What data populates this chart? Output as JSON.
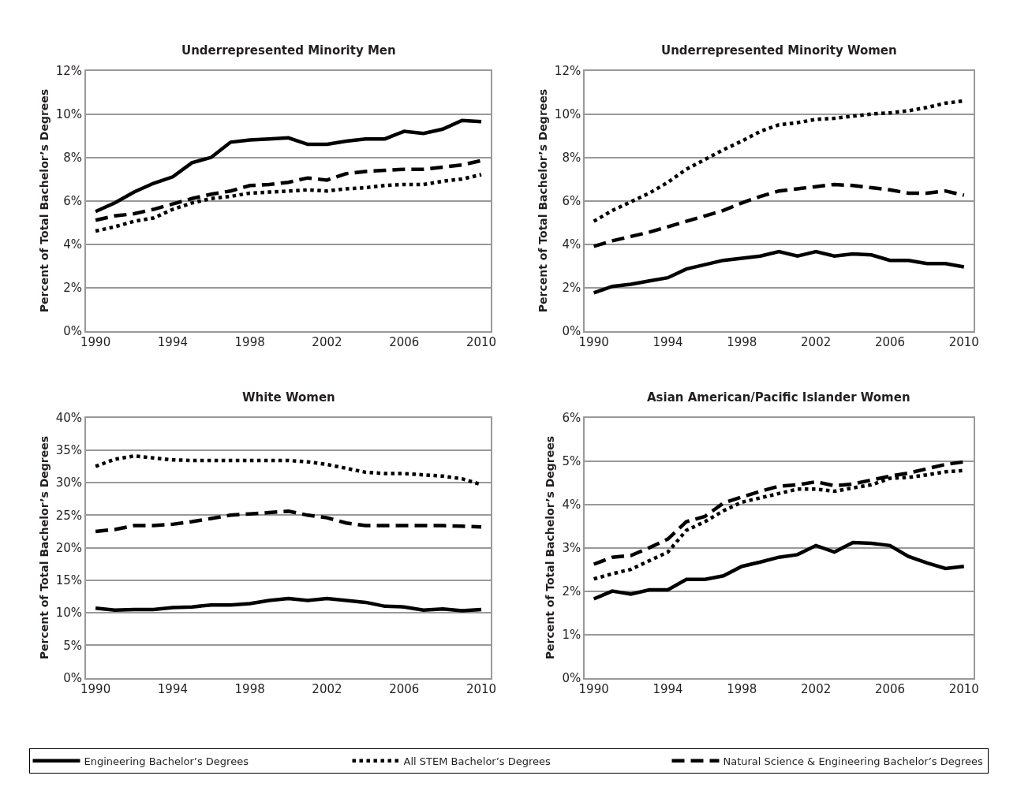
{
  "chart_data": [
    {
      "type": "line",
      "title": "Underrepresented Minority Men",
      "ylabel": "Percent of Total Bachelor’s Degrees",
      "x": [
        1990,
        1991,
        1992,
        1993,
        1994,
        1995,
        1996,
        1997,
        1998,
        1999,
        2000,
        2001,
        2002,
        2003,
        2004,
        2005,
        2006,
        2007,
        2008,
        2009,
        2010
      ],
      "xlim": [
        1989.5,
        2010.5
      ],
      "xticks": [
        1990,
        1994,
        1998,
        2002,
        2006,
        2010
      ],
      "ylim": [
        0,
        12
      ],
      "yticks": [
        {
          "value": 0,
          "label": "0%"
        },
        {
          "value": 2,
          "label": "2%"
        },
        {
          "value": 4,
          "label": "4%"
        },
        {
          "value": 6,
          "label": "6%"
        },
        {
          "value": 8,
          "label": "8%"
        },
        {
          "value": 10,
          "label": "10%"
        },
        {
          "value": 12,
          "label": "12%"
        }
      ],
      "grid": "y",
      "legend": "bottom",
      "series": [
        {
          "name": "Engineering Bachelor’s Degrees",
          "color": "#000000",
          "line_style": "solid",
          "values": [
            5.5,
            5.9,
            6.4,
            6.8,
            7.1,
            7.75,
            8.0,
            8.7,
            8.8,
            8.85,
            8.9,
            8.6,
            8.6,
            8.75,
            8.85,
            8.85,
            9.2,
            9.1,
            9.3,
            9.7,
            9.65
          ]
        },
        {
          "name": "All STEM Bachelor’s Degrees",
          "color": "#000000",
          "line_style": "dotted",
          "values": [
            4.6,
            4.8,
            5.05,
            5.2,
            5.6,
            5.9,
            6.1,
            6.2,
            6.35,
            6.4,
            6.45,
            6.5,
            6.45,
            6.55,
            6.6,
            6.7,
            6.75,
            6.75,
            6.9,
            7.0,
            7.2
          ]
        },
        {
          "name": "Natural Science & Engineering Bachelor’s Degrees",
          "color": "#000000",
          "line_style": "dashed",
          "values": [
            5.1,
            5.3,
            5.4,
            5.6,
            5.85,
            6.1,
            6.3,
            6.45,
            6.7,
            6.75,
            6.85,
            7.05,
            6.95,
            7.25,
            7.35,
            7.4,
            7.45,
            7.45,
            7.55,
            7.65,
            7.85
          ]
        }
      ]
    },
    {
      "type": "line",
      "title": "Underrepresented Minority Women",
      "ylabel": "Percent of Total Bachelor’s Degrees",
      "x": [
        1990,
        1991,
        1992,
        1993,
        1994,
        1995,
        1996,
        1997,
        1998,
        1999,
        2000,
        2001,
        2002,
        2003,
        2004,
        2005,
        2006,
        2007,
        2008,
        2009,
        2010
      ],
      "xlim": [
        1989.5,
        2010.5
      ],
      "xticks": [
        1990,
        1994,
        1998,
        2002,
        2006,
        2010
      ],
      "ylim": [
        0,
        12
      ],
      "yticks": [
        {
          "value": 0,
          "label": "0%"
        },
        {
          "value": 2,
          "label": "2%"
        },
        {
          "value": 4,
          "label": "4%"
        },
        {
          "value": 6,
          "label": "6%"
        },
        {
          "value": 8,
          "label": "8%"
        },
        {
          "value": 10,
          "label": "10%"
        },
        {
          "value": 12,
          "label": "12%"
        }
      ],
      "grid": "y",
      "series": [
        {
          "color": "#000000",
          "line_style": "solid",
          "values": [
            1.75,
            2.05,
            2.15,
            2.3,
            2.45,
            2.85,
            3.05,
            3.25,
            3.35,
            3.45,
            3.65,
            3.45,
            3.65,
            3.45,
            3.55,
            3.5,
            3.25,
            3.25,
            3.1,
            3.1,
            2.95
          ]
        },
        {
          "color": "#000000",
          "line_style": "dotted",
          "values": [
            5.05,
            5.55,
            5.95,
            6.35,
            6.85,
            7.45,
            7.9,
            8.35,
            8.75,
            9.2,
            9.5,
            9.6,
            9.75,
            9.8,
            9.9,
            10.0,
            10.05,
            10.15,
            10.3,
            10.5,
            10.6
          ]
        },
        {
          "color": "#000000",
          "line_style": "dashed",
          "values": [
            3.9,
            4.15,
            4.35,
            4.55,
            4.8,
            5.05,
            5.3,
            5.55,
            5.9,
            6.2,
            6.45,
            6.55,
            6.65,
            6.75,
            6.7,
            6.6,
            6.5,
            6.35,
            6.35,
            6.45,
            6.25
          ]
        }
      ]
    },
    {
      "type": "line",
      "title": "White Women",
      "ylabel": "Percent of Total Bachelor’s Degrees",
      "x": [
        1990,
        1991,
        1992,
        1993,
        1994,
        1995,
        1996,
        1997,
        1998,
        1999,
        2000,
        2001,
        2002,
        2003,
        2004,
        2005,
        2006,
        2007,
        2008,
        2009,
        2010
      ],
      "xlim": [
        1989.5,
        2010.5
      ],
      "xticks": [
        1990,
        1994,
        1998,
        2002,
        2006,
        2010
      ],
      "ylim": [
        0,
        40
      ],
      "yticks": [
        {
          "value": 0,
          "label": "0%"
        },
        {
          "value": 5,
          "label": "5%"
        },
        {
          "value": 10,
          "label": "10%"
        },
        {
          "value": 15,
          "label": "15%"
        },
        {
          "value": 20,
          "label": "20%"
        },
        {
          "value": 25,
          "label": "25%"
        },
        {
          "value": 30,
          "label": "30%"
        },
        {
          "value": 35,
          "label": "35%"
        },
        {
          "value": 40,
          "label": "40%"
        }
      ],
      "grid": "y",
      "series": [
        {
          "color": "#000000",
          "line_style": "solid",
          "values": [
            10.7,
            10.4,
            10.5,
            10.5,
            10.8,
            10.9,
            11.2,
            11.2,
            11.4,
            11.9,
            12.2,
            11.9,
            12.2,
            11.9,
            11.6,
            11.0,
            10.9,
            10.4,
            10.6,
            10.3,
            10.5
          ]
        },
        {
          "color": "#000000",
          "line_style": "dotted",
          "values": [
            32.5,
            33.6,
            34.1,
            33.8,
            33.5,
            33.4,
            33.4,
            33.4,
            33.4,
            33.4,
            33.4,
            33.2,
            32.8,
            32.2,
            31.6,
            31.4,
            31.4,
            31.2,
            31.0,
            30.6,
            29.7
          ]
        },
        {
          "color": "#000000",
          "line_style": "dashed",
          "values": [
            22.5,
            22.8,
            23.4,
            23.4,
            23.6,
            24.0,
            24.5,
            25.0,
            25.2,
            25.4,
            25.6,
            25.0,
            24.6,
            23.8,
            23.4,
            23.4,
            23.4,
            23.4,
            23.4,
            23.3,
            23.2
          ]
        }
      ]
    },
    {
      "type": "line",
      "title": "Asian American/Pacific Islander Women",
      "ylabel": "Percent of Total Bachelor’s Degrees",
      "x": [
        1990,
        1991,
        1992,
        1993,
        1994,
        1995,
        1996,
        1997,
        1998,
        1999,
        2000,
        2001,
        2002,
        2003,
        2004,
        2005,
        2006,
        2007,
        2008,
        2009,
        2010
      ],
      "xlim": [
        1989.5,
        2010.5
      ],
      "xticks": [
        1990,
        1994,
        1998,
        2002,
        2006,
        2010
      ],
      "ylim": [
        0,
        6
      ],
      "yticks": [
        {
          "value": 0,
          "label": "0%"
        },
        {
          "value": 1,
          "label": "1%"
        },
        {
          "value": 2,
          "label": "2%"
        },
        {
          "value": 3,
          "label": "3%"
        },
        {
          "value": 4,
          "label": "4%"
        },
        {
          "value": 5,
          "label": "5%"
        },
        {
          "value": 6,
          "label": "6%"
        }
      ],
      "grid": "y",
      "series": [
        {
          "color": "#000000",
          "line_style": "solid",
          "values": [
            1.82,
            2.0,
            1.93,
            2.03,
            2.03,
            2.27,
            2.27,
            2.35,
            2.57,
            2.67,
            2.78,
            2.84,
            3.05,
            2.9,
            3.12,
            3.1,
            3.05,
            2.8,
            2.65,
            2.52,
            2.57
          ]
        },
        {
          "color": "#000000",
          "line_style": "dotted",
          "values": [
            2.28,
            2.4,
            2.5,
            2.7,
            2.9,
            3.4,
            3.6,
            3.85,
            4.05,
            4.15,
            4.25,
            4.35,
            4.35,
            4.3,
            4.38,
            4.45,
            4.6,
            4.62,
            4.68,
            4.75,
            4.78
          ]
        },
        {
          "color": "#000000",
          "line_style": "dashed",
          "values": [
            2.62,
            2.78,
            2.82,
            3.0,
            3.2,
            3.6,
            3.72,
            4.03,
            4.17,
            4.3,
            4.42,
            4.45,
            4.52,
            4.43,
            4.47,
            4.56,
            4.65,
            4.72,
            4.82,
            4.92,
            4.98
          ]
        }
      ]
    }
  ]
}
